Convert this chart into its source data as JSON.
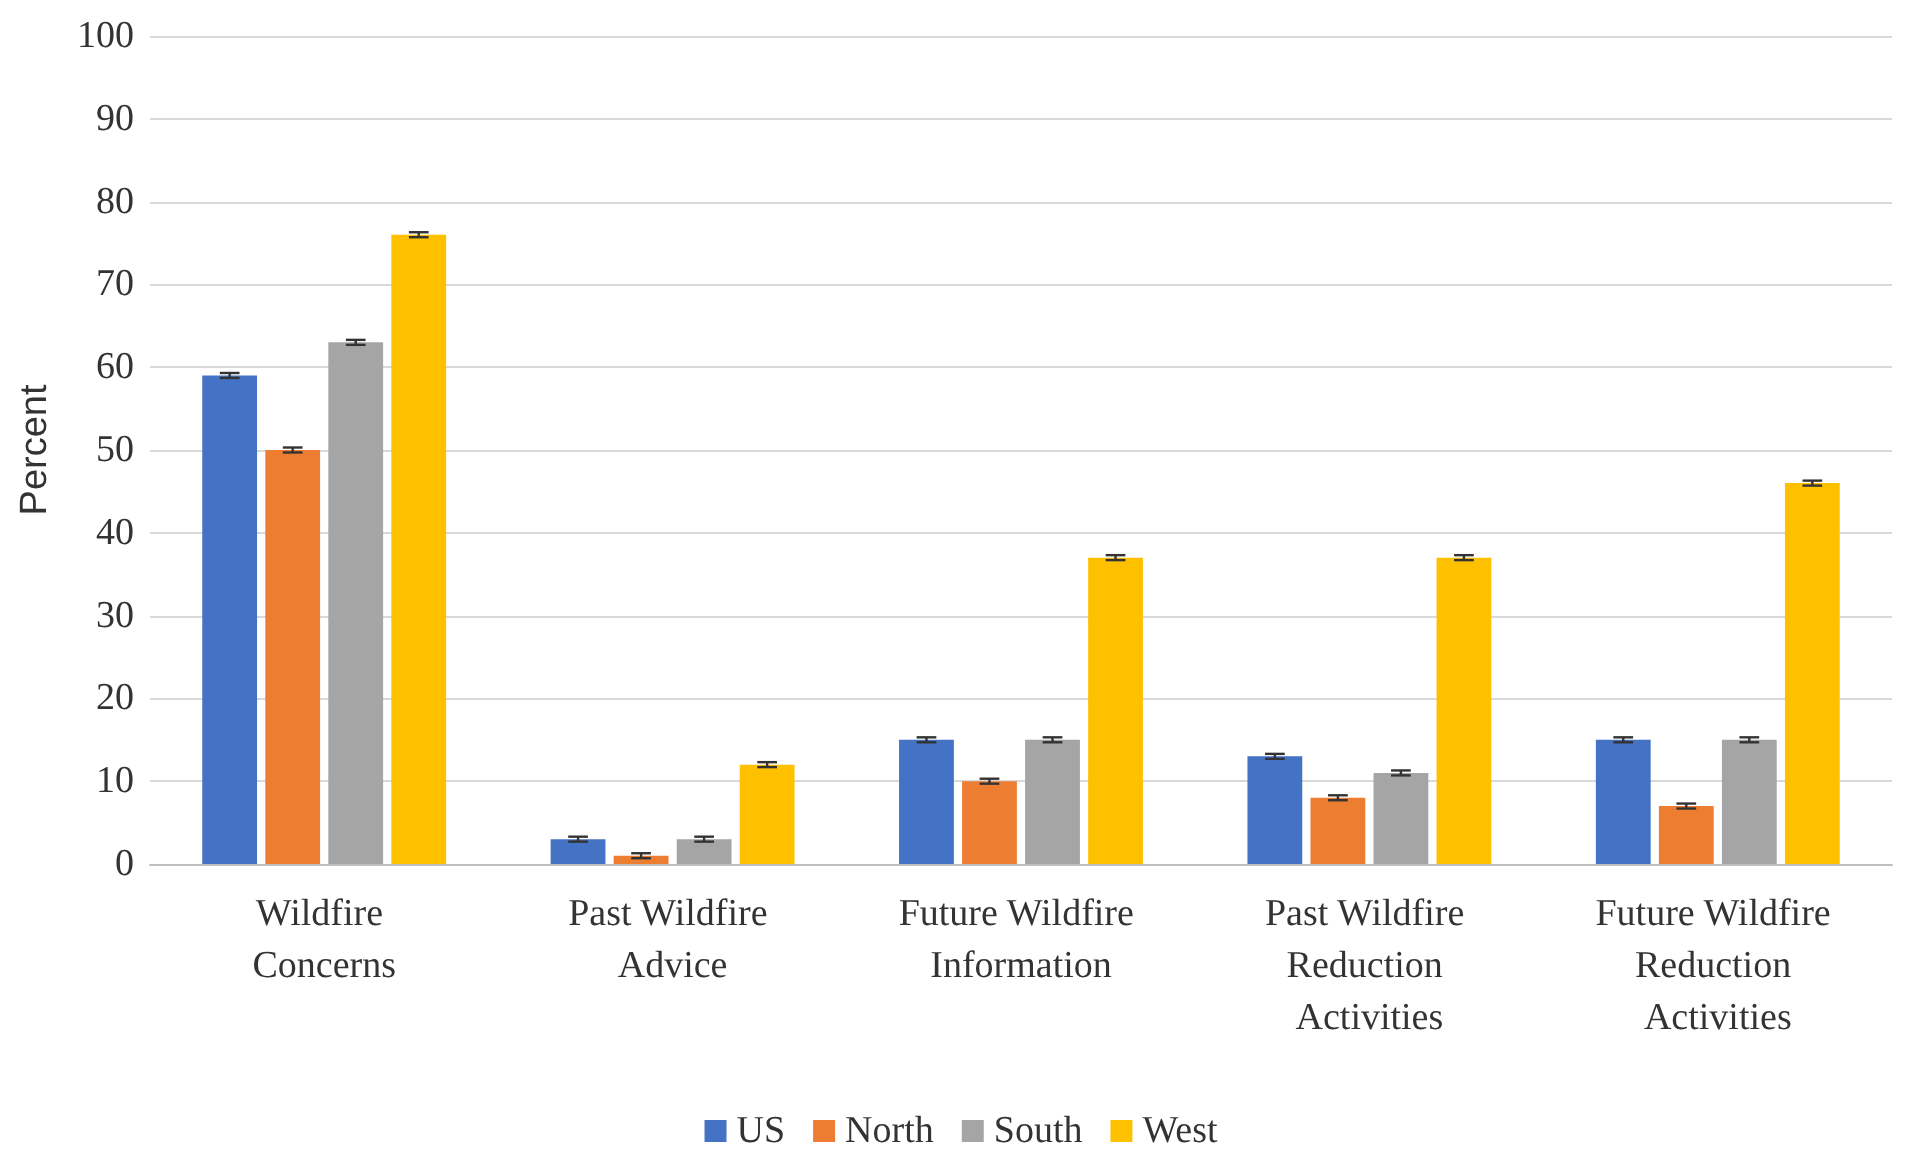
{
  "chart_data": {
    "type": "bar",
    "ylabel": "Percent",
    "categories": [
      "Wildfire Concerns",
      "Past Wildfire Advice",
      "Future Wildfire Information",
      "Past Wildfire Reduction Activities",
      "Future Wildfire Reduction Activities"
    ],
    "series": [
      {
        "name": "US",
        "color": "#4472c4",
        "values": [
          59,
          3,
          15,
          13,
          15
        ],
        "errors": [
          0.3,
          0.3,
          0.3,
          0.3,
          0.3
        ]
      },
      {
        "name": "North",
        "color": "#ed7d31",
        "values": [
          50,
          1,
          10,
          8,
          7
        ],
        "errors": [
          0.3,
          0.3,
          0.3,
          0.3,
          0.3
        ]
      },
      {
        "name": "South",
        "color": "#a5a5a5",
        "values": [
          63,
          3,
          15,
          11,
          15
        ],
        "errors": [
          0.3,
          0.3,
          0.3,
          0.3,
          0.3
        ]
      },
      {
        "name": "West",
        "color": "#ffc000",
        "values": [
          76,
          12,
          37,
          37,
          46
        ],
        "errors": [
          0.3,
          0.3,
          0.3,
          0.3,
          0.3
        ]
      }
    ],
    "ylim": [
      0,
      100
    ],
    "yticks": [
      0,
      10,
      20,
      30,
      40,
      50,
      60,
      70,
      80,
      90,
      100
    ],
    "grid": "y",
    "legend": "bottom"
  }
}
